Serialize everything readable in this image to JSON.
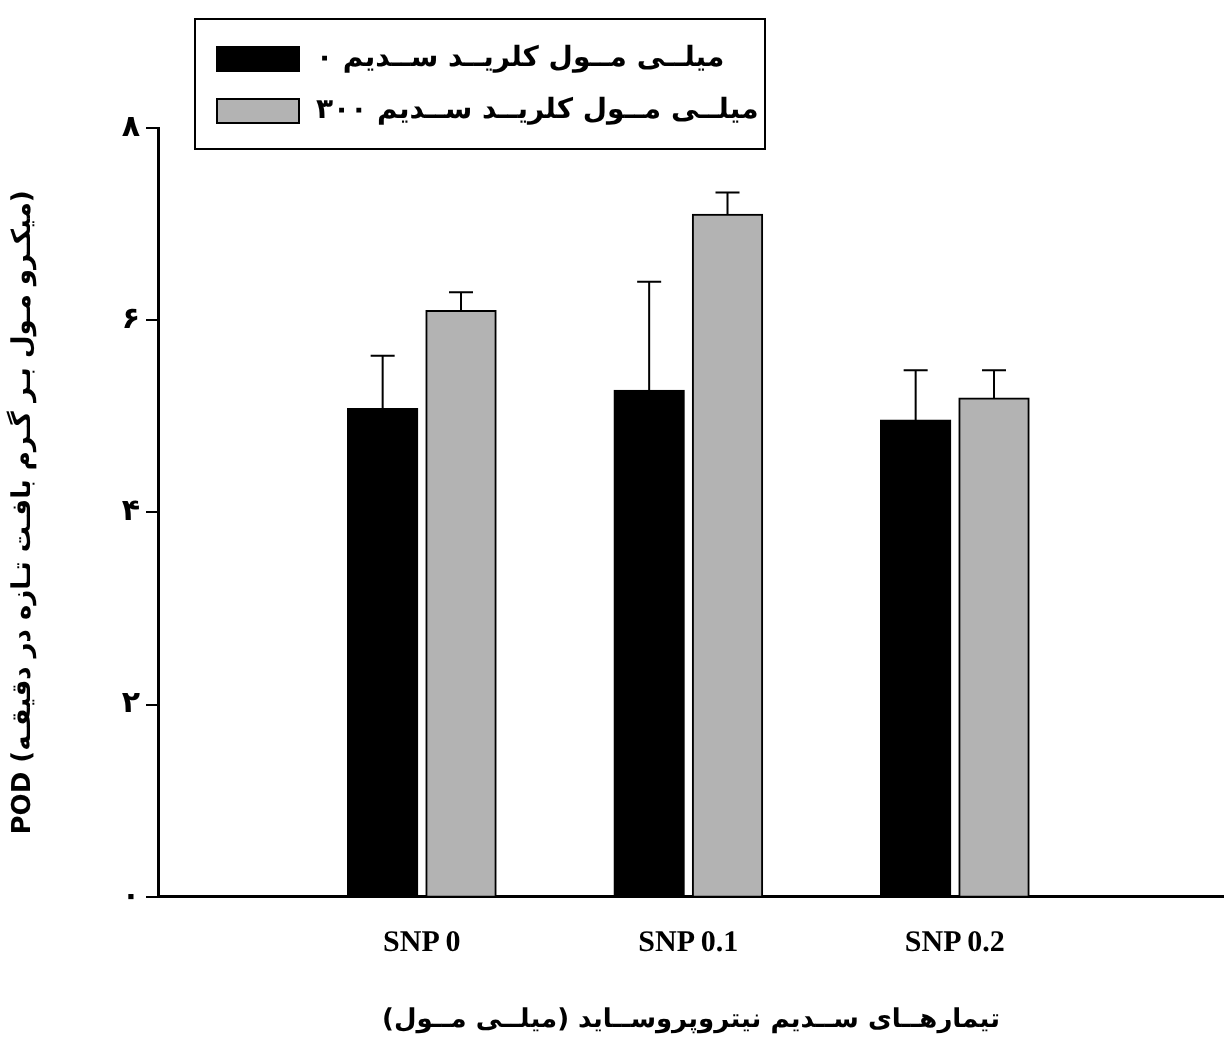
{
  "chart_data": {
    "type": "bar",
    "xlabel": "تیمارهــای ســدیم نیتروپروســاید (میلــی مــول)",
    "ylabel": "POD (میکـرو مـول بـر گـرم بافـت تـازه در دقیقـه)",
    "categories": [
      "SNP 0",
      "SNP 0.1",
      "SNP 0.2"
    ],
    "series": [
      {
        "name": "میلــی مــول کلریــد ســدیم ۰",
        "color": "#000000",
        "values": [
          5.08,
          5.27,
          4.96
        ],
        "errors": [
          0.55,
          1.13,
          0.52
        ]
      },
      {
        "name": "میلــی مــول کلریــد ســدیم ۳۰۰",
        "color": "#b3b3b3",
        "values": [
          6.1,
          7.1,
          5.19
        ],
        "errors": [
          0.19,
          0.23,
          0.29
        ]
      }
    ],
    "ylim": [
      0,
      8
    ],
    "yticks": [
      {
        "value": 0,
        "label": "۰"
      },
      {
        "value": 2,
        "label": "۲"
      },
      {
        "value": 4,
        "label": "۴"
      },
      {
        "value": 6,
        "label": "۶"
      },
      {
        "value": 8,
        "label": "۸"
      }
    ],
    "grid": false,
    "legend": "top left"
  }
}
